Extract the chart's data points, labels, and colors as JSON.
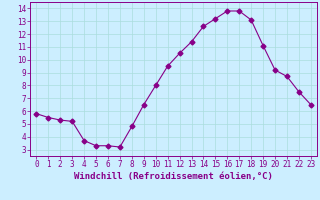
{
  "x": [
    0,
    1,
    2,
    3,
    4,
    5,
    6,
    7,
    8,
    9,
    10,
    11,
    12,
    13,
    14,
    15,
    16,
    17,
    18,
    19,
    20,
    21,
    22,
    23
  ],
  "y": [
    5.8,
    5.5,
    5.3,
    5.2,
    3.7,
    3.3,
    3.3,
    3.2,
    4.8,
    6.5,
    8.0,
    9.5,
    10.5,
    11.4,
    12.6,
    13.2,
    13.8,
    13.8,
    13.1,
    11.1,
    9.2,
    8.7,
    7.5,
    6.5
  ],
  "line_color": "#880088",
  "marker": "D",
  "marker_size": 2.5,
  "bg_color": "#cceeff",
  "grid_color": "#aadddd",
  "xlabel": "Windchill (Refroidissement éolien,°C)",
  "xlabel_color": "#880088",
  "xlabel_fontsize": 6.5,
  "tick_color": "#880088",
  "tick_fontsize": 5.5,
  "ylim": [
    2.5,
    14.5
  ],
  "yticks": [
    3,
    4,
    5,
    6,
    7,
    8,
    9,
    10,
    11,
    12,
    13,
    14
  ],
  "xlim": [
    -0.5,
    23.5
  ],
  "xticks": [
    0,
    1,
    2,
    3,
    4,
    5,
    6,
    7,
    8,
    9,
    10,
    11,
    12,
    13,
    14,
    15,
    16,
    17,
    18,
    19,
    20,
    21,
    22,
    23
  ]
}
